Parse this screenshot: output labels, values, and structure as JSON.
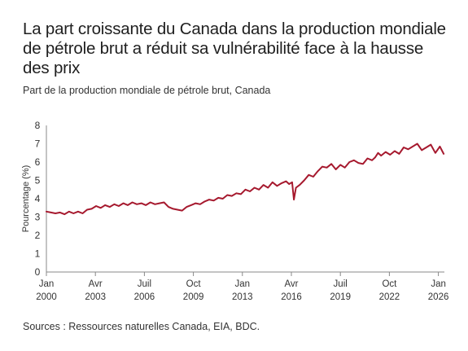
{
  "title": "La part croissante du Canada dans la production mondiale de pétrole brut a réduit sa vulnérabilité face à la hausse des prix",
  "subtitle": "Part de la production mondiale de pétrole brut, Canada",
  "source": "Sources : Ressources naturelles Canada, EIA, BDC.",
  "colors": {
    "line": "#a6192e",
    "axis": "#888888"
  },
  "chart_data": {
    "type": "line",
    "ylabel": "Pourcentage (%)",
    "xlabel": "",
    "ylim": [
      0,
      8
    ],
    "xlim": [
      2000.0,
      2026.4
    ],
    "grid": false,
    "y_ticks": [
      "0",
      "1",
      "2",
      "3",
      "4",
      "5",
      "6",
      "7",
      "8"
    ],
    "x_ticks": [
      {
        "month": "Jan",
        "year": "2000",
        "x": 2000.0
      },
      {
        "month": "Avr",
        "year": "2003",
        "x": 2003.25
      },
      {
        "month": "Juil",
        "year": "2006",
        "x": 2006.5
      },
      {
        "month": "Oct",
        "year": "2009",
        "x": 2009.75
      },
      {
        "month": "Jan",
        "year": "2013",
        "x": 2013.0
      },
      {
        "month": "Avr",
        "year": "2016",
        "x": 2016.25
      },
      {
        "month": "Juil",
        "year": "2019",
        "x": 2019.5
      },
      {
        "month": "Oct",
        "year": "2022",
        "x": 2022.75
      },
      {
        "month": "Jan",
        "year": "2026",
        "x": 2026.0
      }
    ],
    "series": [
      {
        "values": [
          [
            2000.0,
            3.3
          ],
          [
            2000.3,
            3.25
          ],
          [
            2000.6,
            3.2
          ],
          [
            2000.9,
            3.25
          ],
          [
            2001.2,
            3.15
          ],
          [
            2001.5,
            3.3
          ],
          [
            2001.8,
            3.2
          ],
          [
            2002.1,
            3.3
          ],
          [
            2002.4,
            3.2
          ],
          [
            2002.7,
            3.4
          ],
          [
            2003.0,
            3.45
          ],
          [
            2003.3,
            3.6
          ],
          [
            2003.6,
            3.5
          ],
          [
            2003.9,
            3.65
          ],
          [
            2004.2,
            3.55
          ],
          [
            2004.5,
            3.7
          ],
          [
            2004.8,
            3.6
          ],
          [
            2005.1,
            3.75
          ],
          [
            2005.4,
            3.65
          ],
          [
            2005.7,
            3.8
          ],
          [
            2006.0,
            3.7
          ],
          [
            2006.3,
            3.75
          ],
          [
            2006.6,
            3.65
          ],
          [
            2006.9,
            3.8
          ],
          [
            2007.2,
            3.7
          ],
          [
            2007.5,
            3.75
          ],
          [
            2007.8,
            3.8
          ],
          [
            2008.1,
            3.55
          ],
          [
            2008.4,
            3.45
          ],
          [
            2008.7,
            3.4
          ],
          [
            2009.0,
            3.35
          ],
          [
            2009.3,
            3.55
          ],
          [
            2009.6,
            3.65
          ],
          [
            2009.9,
            3.75
          ],
          [
            2010.2,
            3.7
          ],
          [
            2010.5,
            3.85
          ],
          [
            2010.8,
            3.95
          ],
          [
            2011.1,
            3.9
          ],
          [
            2011.4,
            4.05
          ],
          [
            2011.7,
            4.0
          ],
          [
            2012.0,
            4.2
          ],
          [
            2012.3,
            4.15
          ],
          [
            2012.6,
            4.3
          ],
          [
            2012.9,
            4.25
          ],
          [
            2013.2,
            4.5
          ],
          [
            2013.5,
            4.4
          ],
          [
            2013.8,
            4.6
          ],
          [
            2014.1,
            4.5
          ],
          [
            2014.4,
            4.75
          ],
          [
            2014.7,
            4.6
          ],
          [
            2015.0,
            4.9
          ],
          [
            2015.3,
            4.7
          ],
          [
            2015.6,
            4.85
          ],
          [
            2015.9,
            4.95
          ],
          [
            2016.1,
            4.8
          ],
          [
            2016.3,
            4.9
          ],
          [
            2016.42,
            3.95
          ],
          [
            2016.55,
            4.6
          ],
          [
            2016.8,
            4.75
          ],
          [
            2017.1,
            5.0
          ],
          [
            2017.4,
            5.3
          ],
          [
            2017.7,
            5.2
          ],
          [
            2018.0,
            5.5
          ],
          [
            2018.3,
            5.75
          ],
          [
            2018.6,
            5.7
          ],
          [
            2018.9,
            5.9
          ],
          [
            2019.2,
            5.6
          ],
          [
            2019.5,
            5.85
          ],
          [
            2019.8,
            5.7
          ],
          [
            2020.1,
            6.0
          ],
          [
            2020.4,
            6.1
          ],
          [
            2020.7,
            5.95
          ],
          [
            2021.0,
            5.9
          ],
          [
            2021.3,
            6.2
          ],
          [
            2021.6,
            6.1
          ],
          [
            2021.8,
            6.25
          ],
          [
            2022.0,
            6.5
          ],
          [
            2022.2,
            6.35
          ],
          [
            2022.5,
            6.55
          ],
          [
            2022.8,
            6.4
          ],
          [
            2023.1,
            6.6
          ],
          [
            2023.4,
            6.45
          ],
          [
            2023.7,
            6.8
          ],
          [
            2024.0,
            6.7
          ],
          [
            2024.3,
            6.85
          ],
          [
            2024.6,
            7.0
          ],
          [
            2024.9,
            6.65
          ],
          [
            2025.2,
            6.8
          ],
          [
            2025.5,
            6.95
          ],
          [
            2025.8,
            6.5
          ],
          [
            2026.1,
            6.85
          ],
          [
            2026.35,
            6.45
          ]
        ]
      }
    ]
  }
}
